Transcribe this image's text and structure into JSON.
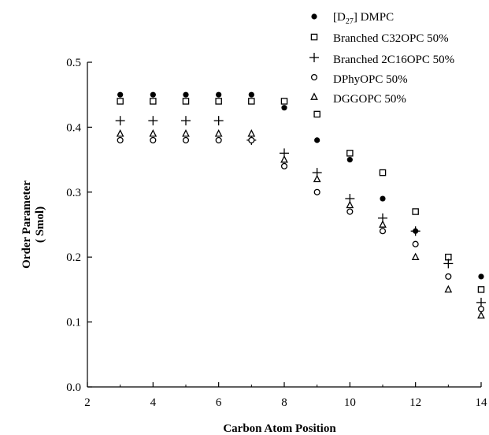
{
  "chart_data": {
    "type": "scatter",
    "xlabel": "Carbon Atom Position",
    "ylabel_line1": "Order Parameter",
    "ylabel_line2": "( Smol)",
    "xlim": [
      2,
      14
    ],
    "ylim": [
      0.0,
      0.5
    ],
    "xticks": [
      2,
      4,
      6,
      8,
      10,
      12,
      14
    ],
    "yticks": [
      0.0,
      0.1,
      0.2,
      0.3,
      0.4,
      0.5
    ],
    "xtick_labels": [
      "2",
      "4",
      "6",
      "8",
      "10",
      "12",
      "14"
    ],
    "ytick_labels": [
      "0.0",
      "0.1",
      "0.2",
      "0.3",
      "0.4",
      "0.5"
    ],
    "grid": false,
    "legend_position": "top-right",
    "series": [
      {
        "name": "[D27] DMPC",
        "legend_main": "[D",
        "legend_sub": "27",
        "legend_rest": "] DMPC",
        "marker": "filled-circle",
        "x": [
          3,
          4,
          5,
          6,
          7,
          8,
          9,
          10,
          11,
          12,
          13,
          14
        ],
        "y": [
          0.45,
          0.45,
          0.45,
          0.45,
          0.45,
          0.43,
          0.38,
          0.35,
          0.29,
          0.24,
          0.2,
          0.17
        ]
      },
      {
        "name": "Branched C32OPC 50%",
        "marker": "open-square",
        "x": [
          3,
          4,
          5,
          6,
          7,
          8,
          9,
          10,
          11,
          12,
          13,
          14
        ],
        "y": [
          0.44,
          0.44,
          0.44,
          0.44,
          0.44,
          0.44,
          0.42,
          0.36,
          0.33,
          0.27,
          0.2,
          0.15
        ]
      },
      {
        "name": "Branched 2C16OPC 50%",
        "marker": "plus",
        "x": [
          3,
          4,
          5,
          6,
          7,
          8,
          9,
          10,
          11,
          12,
          13,
          14
        ],
        "y": [
          0.41,
          0.41,
          0.41,
          0.41,
          0.38,
          0.36,
          0.33,
          0.29,
          0.26,
          0.24,
          0.19,
          0.13
        ]
      },
      {
        "name": "DPhyOPC 50%",
        "marker": "open-circle",
        "x": [
          3,
          4,
          5,
          6,
          7,
          8,
          9,
          10,
          11,
          12,
          13,
          14
        ],
        "y": [
          0.38,
          0.38,
          0.38,
          0.38,
          0.38,
          0.34,
          0.3,
          0.27,
          0.24,
          0.22,
          0.17,
          0.12
        ]
      },
      {
        "name": "DGGOPC 50%",
        "marker": "open-triangle",
        "x": [
          3,
          4,
          5,
          6,
          7,
          8,
          9,
          10,
          11,
          12,
          13,
          14
        ],
        "y": [
          0.39,
          0.39,
          0.39,
          0.39,
          0.39,
          0.35,
          0.32,
          0.28,
          0.25,
          0.2,
          0.15,
          0.11
        ]
      }
    ]
  }
}
